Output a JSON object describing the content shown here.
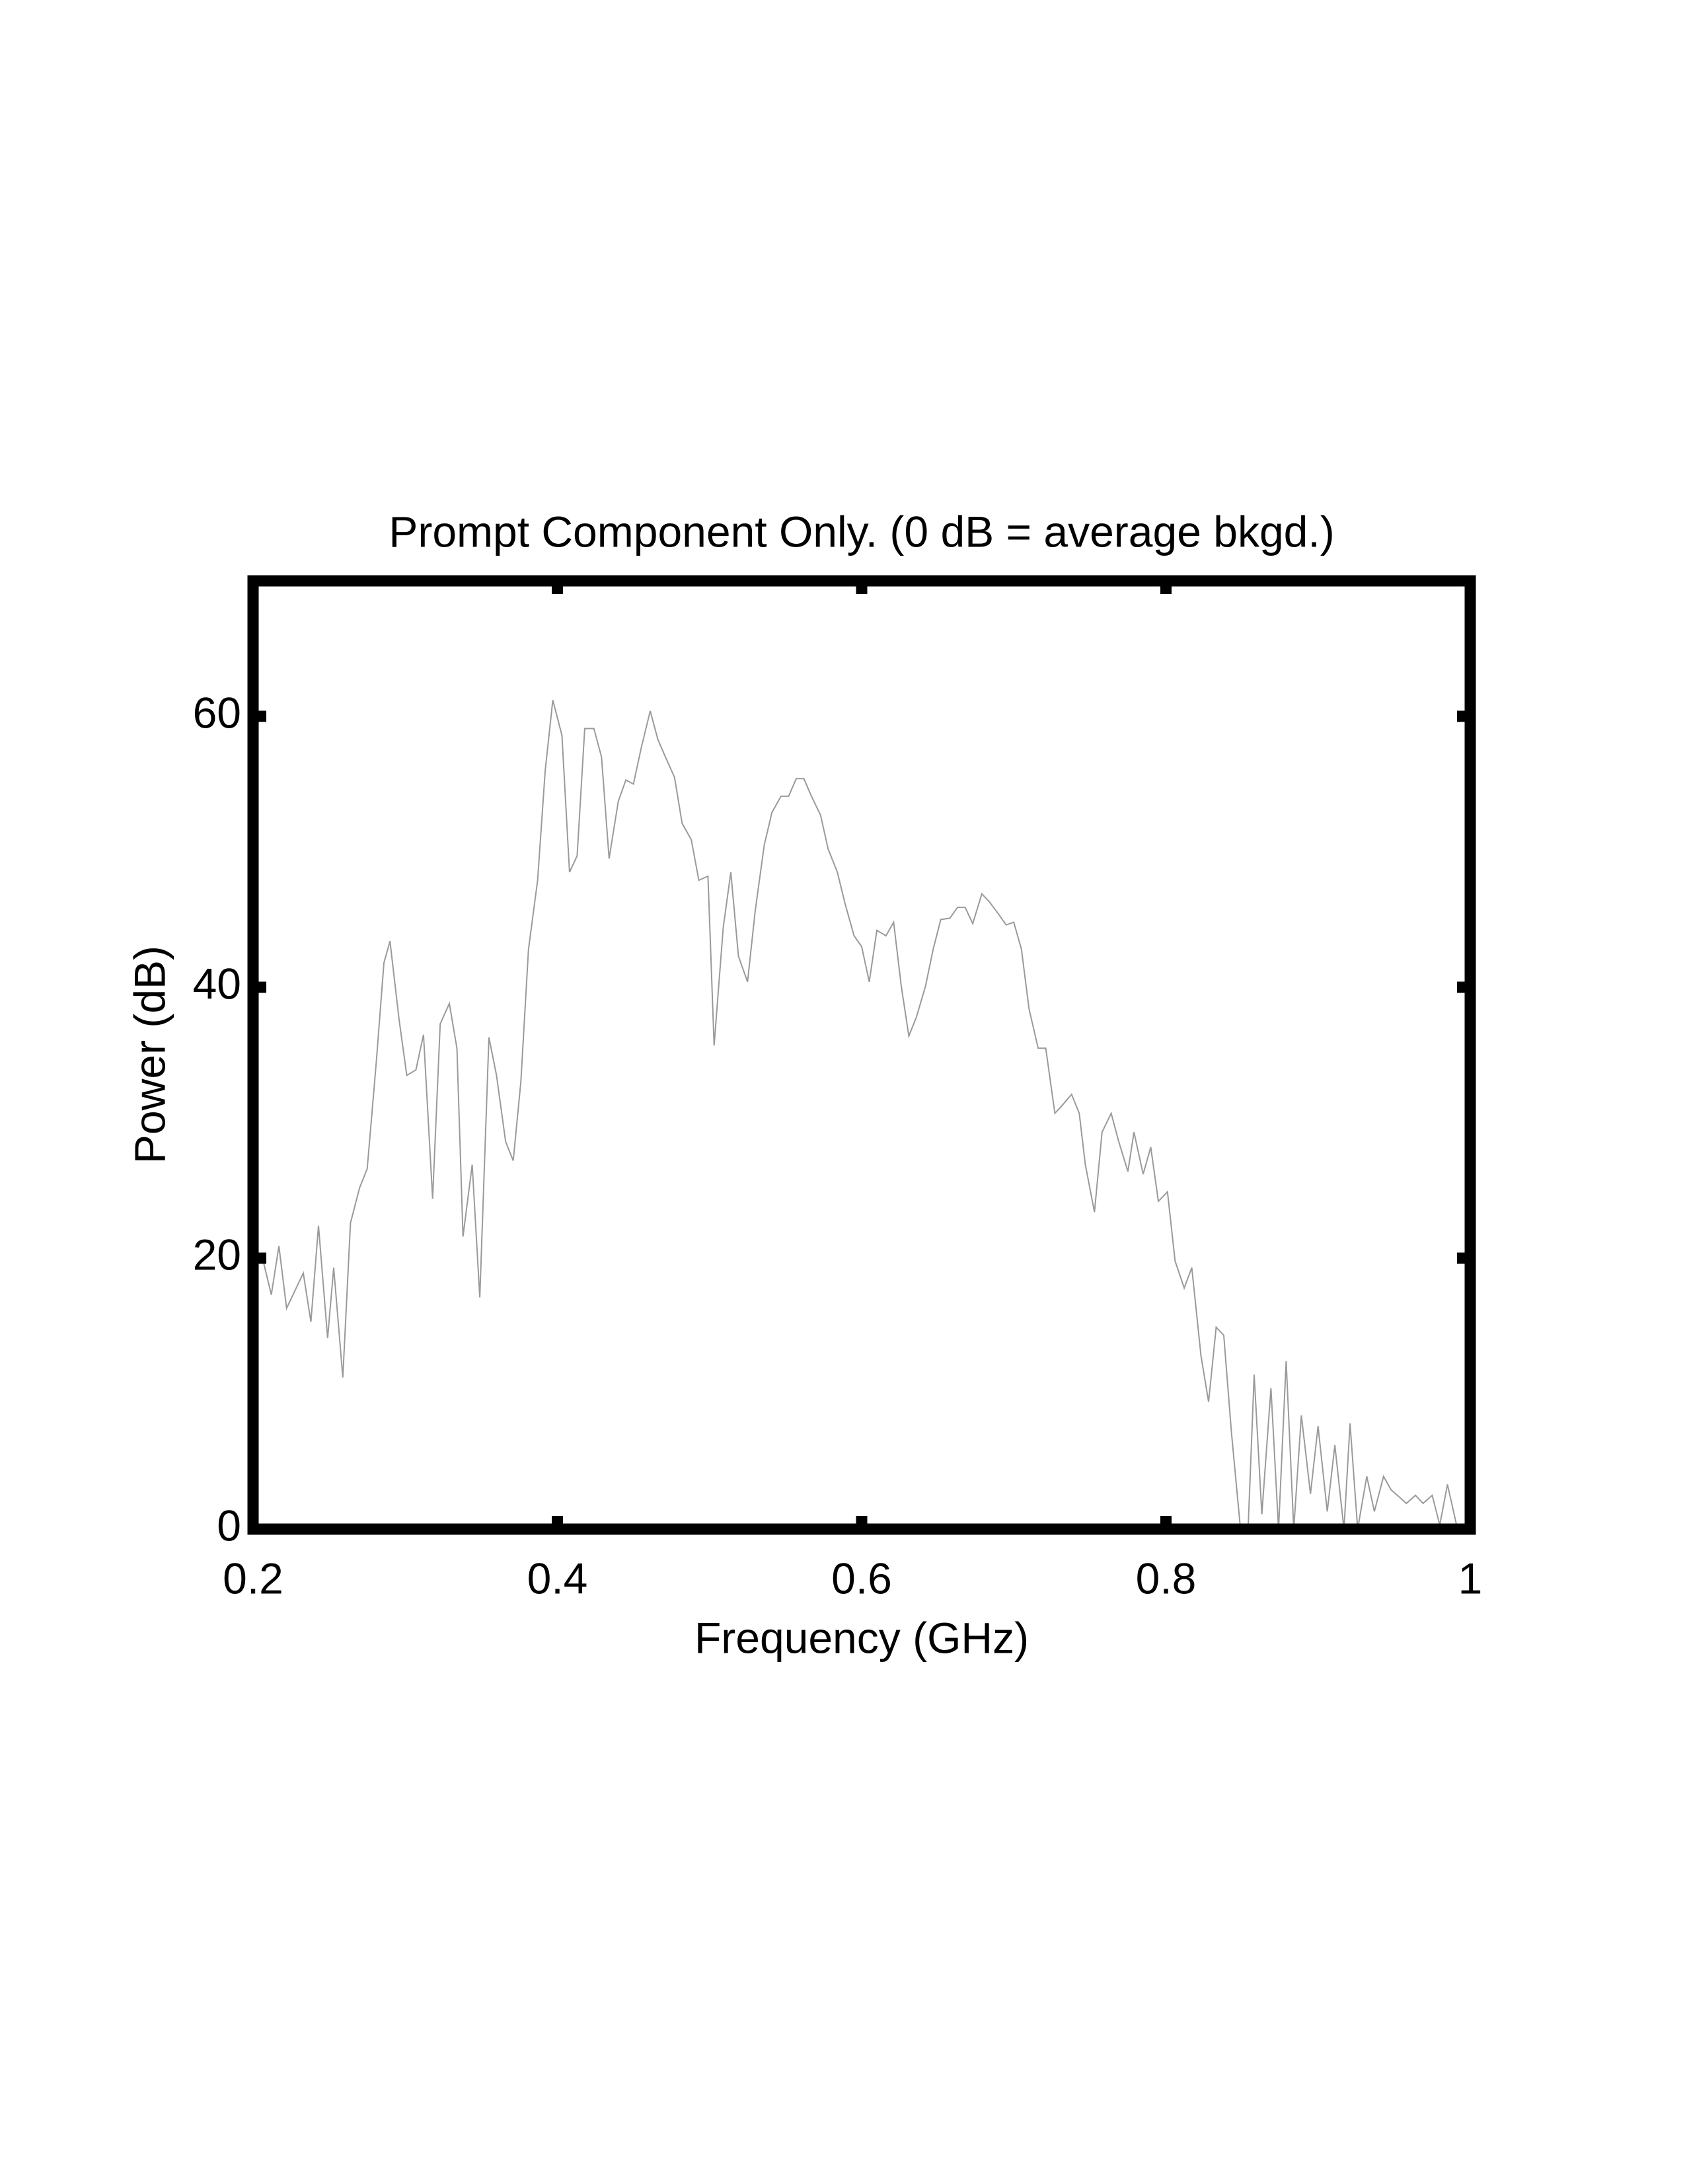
{
  "chart_data": {
    "type": "line",
    "title": "Prompt Component Only. (0 dB = average bkgd.)",
    "x_label": "Frequency (GHz)",
    "y_label": "Power (dB)",
    "color": "#9a9a9a",
    "xlim": [
      0.2,
      1
    ],
    "xticks": [
      0.2,
      0.4,
      0.6,
      0.8,
      1
    ],
    "ylim": [
      0,
      70
    ],
    "yticks": [
      0,
      20,
      40,
      60
    ],
    "x": [
      0.206,
      0.212,
      0.217,
      0.222,
      0.233,
      0.238,
      0.243,
      0.249,
      0.253,
      0.259,
      0.264,
      0.27,
      0.275,
      0.281,
      0.286,
      0.29,
      0.296,
      0.301,
      0.307,
      0.312,
      0.318,
      0.323,
      0.329,
      0.334,
      0.338,
      0.344,
      0.349,
      0.355,
      0.36,
      0.366,
      0.371,
      0.376,
      0.381,
      0.387,
      0.392,
      0.397,
      0.403,
      0.408,
      0.413,
      0.418,
      0.424,
      0.429,
      0.434,
      0.44,
      0.445,
      0.45,
      0.455,
      0.461,
      0.466,
      0.471,
      0.477,
      0.482,
      0.488,
      0.493,
      0.499,
      0.503,
      0.509,
      0.514,
      0.519,
      0.525,
      0.53,
      0.536,
      0.541,
      0.547,
      0.552,
      0.557,
      0.562,
      0.567,
      0.573,
      0.578,
      0.584,
      0.589,
      0.595,
      0.6,
      0.605,
      0.61,
      0.616,
      0.621,
      0.626,
      0.631,
      0.636,
      0.642,
      0.647,
      0.652,
      0.658,
      0.663,
      0.668,
      0.673,
      0.679,
      0.684,
      0.69,
      0.695,
      0.7,
      0.705,
      0.71,
      0.716,
      0.721,
      0.727,
      0.732,
      0.738,
      0.743,
      0.747,
      0.753,
      0.758,
      0.764,
      0.769,
      0.775,
      0.779,
      0.785,
      0.79,
      0.795,
      0.801,
      0.806,
      0.812,
      0.817,
      0.823,
      0.828,
      0.833,
      0.838,
      0.843,
      0.849,
      0.854,
      0.858,
      0.863,
      0.869,
      0.874,
      0.879,
      0.884,
      0.889,
      0.895,
      0.9,
      0.906,
      0.911,
      0.917,
      0.921,
      0.926,
      0.932,
      0.937,
      0.943,
      0.948,
      0.954,
      0.958,
      0.964,
      0.969,
      0.975,
      0.98,
      0.985,
      0.991
    ],
    "values": [
      20.1,
      17.3,
      20.9,
      16.3,
      18.9,
      15.3,
      22.4,
      14.1,
      19.3,
      11.2,
      22.6,
      25.2,
      26.6,
      34.5,
      41.8,
      43.4,
      37.6,
      33.5,
      33.9,
      36.5,
      24.4,
      37.3,
      38.8,
      35.5,
      21.6,
      26.9,
      17.1,
      36.3,
      33.5,
      28.6,
      27.2,
      33.0,
      42.8,
      47.9,
      56.0,
      61.2,
      58.6,
      48.5,
      49.7,
      59.1,
      59.1,
      57.0,
      49.5,
      53.7,
      55.3,
      55.0,
      57.6,
      60.4,
      58.3,
      57.0,
      55.5,
      52.1,
      50.9,
      47.9,
      48.2,
      35.7,
      44.4,
      48.5,
      42.3,
      40.4,
      45.6,
      50.5,
      52.9,
      54.1,
      54.1,
      55.4,
      55.4,
      54.1,
      52.7,
      50.2,
      48.5,
      46.2,
      43.8,
      43.0,
      40.4,
      44.2,
      43.8,
      44.8,
      40.1,
      36.4,
      37.8,
      40.1,
      42.8,
      45.0,
      45.1,
      45.9,
      45.9,
      44.7,
      46.9,
      46.3,
      45.4,
      44.6,
      44.8,
      42.8,
      38.4,
      35.5,
      35.5,
      30.7,
      31.3,
      32.1,
      30.7,
      26.9,
      23.4,
      29.3,
      30.7,
      28.6,
      26.4,
      29.3,
      26.2,
      28.2,
      24.2,
      24.9,
      19.8,
      17.8,
      19.3,
      12.8,
      9.4,
      14.9,
      14.3,
      7.2,
      0,
      0,
      11.4,
      1.1,
      10.4,
      0,
      12.4,
      0,
      8.4,
      2.6,
      7.6,
      1.3,
      6.2,
      0,
      7.8,
      0,
      3.9,
      1.3,
      3.9,
      2.9,
      2.3,
      1.9,
      2.5,
      1.9,
      2.5,
      0.3,
      3.3,
      0.3
    ]
  }
}
